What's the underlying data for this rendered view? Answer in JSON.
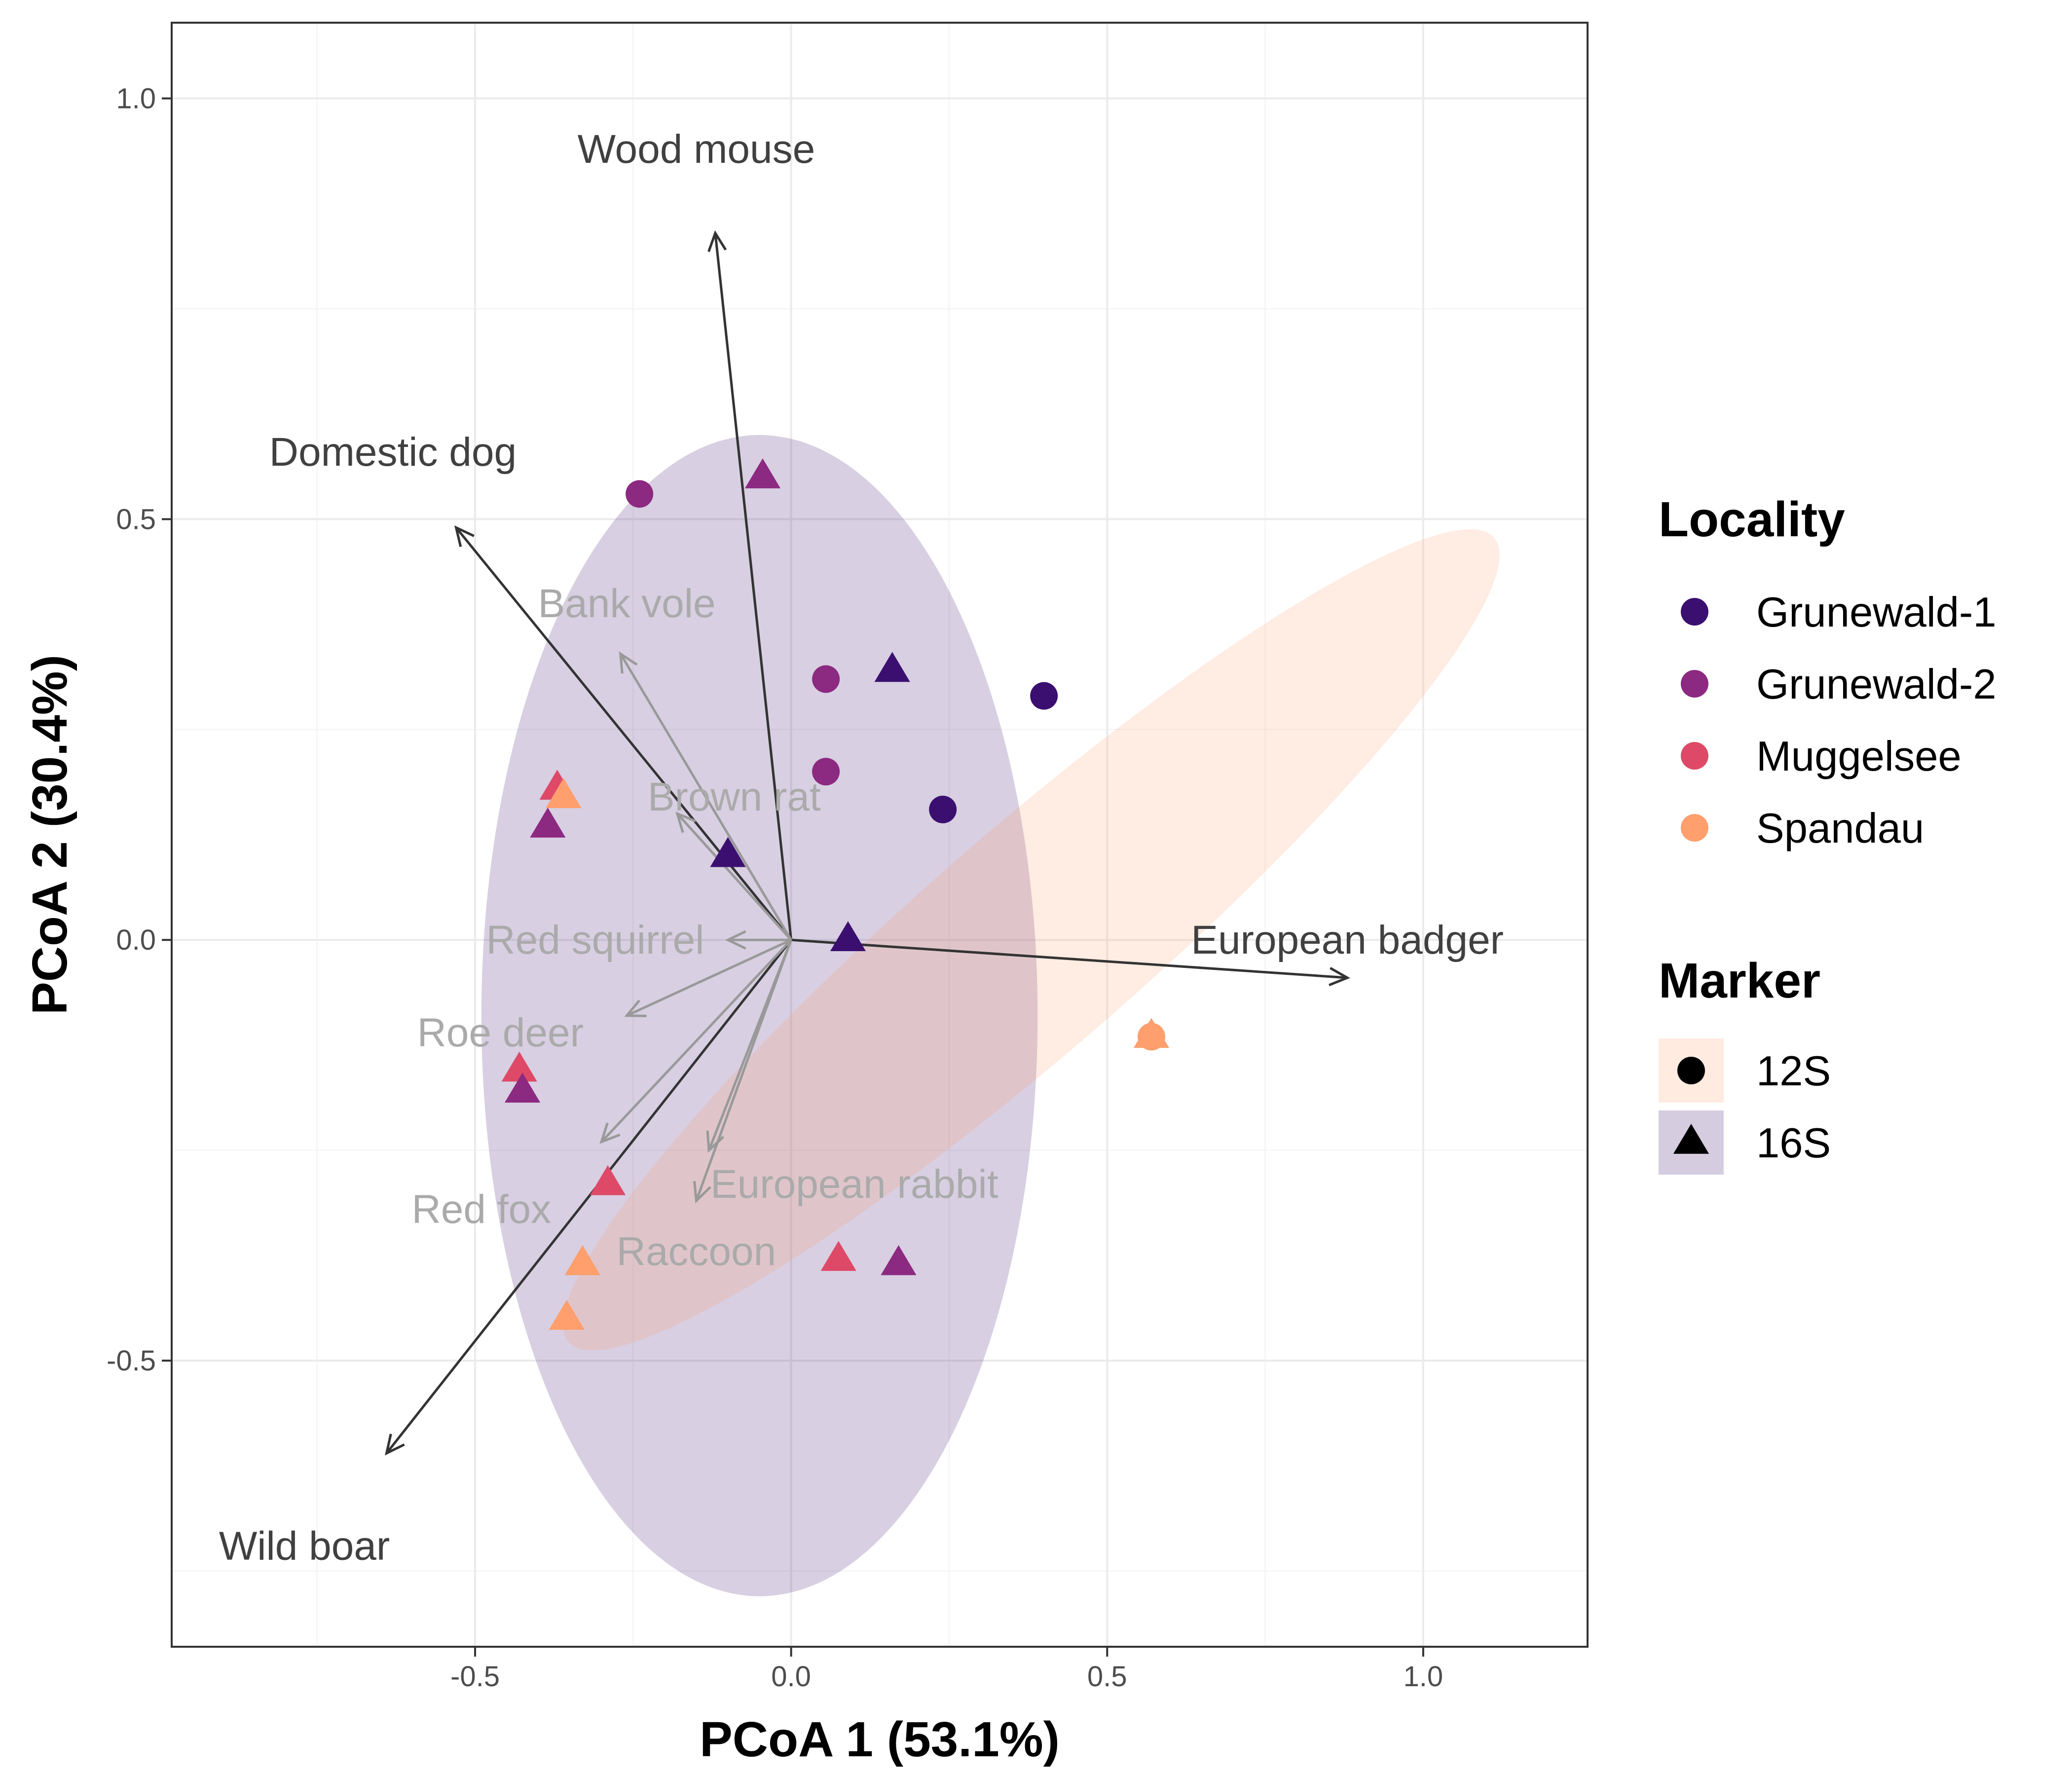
{
  "chart_data": {
    "type": "scatter",
    "xlabel": "PCoA 1 (53.1%)",
    "ylabel": "PCoA 2 (30.4%)",
    "xlim": [
      -0.98,
      1.26
    ],
    "ylim": [
      -0.84,
      1.09
    ],
    "x_ticks": [
      -0.5,
      0.0,
      0.5,
      1.0
    ],
    "y_ticks": [
      -0.5,
      0.0,
      0.5,
      1.0
    ],
    "x_tick_labels": [
      "-0.5",
      "0.0",
      "0.5",
      "1.0"
    ],
    "y_tick_labels": [
      "-0.5",
      "0.0",
      "0.5",
      "1.0"
    ],
    "grid": true,
    "legend_position": "right",
    "legends": [
      {
        "title": "Locality",
        "entries": [
          {
            "label": "Grunewald-1",
            "color": "#3B0F70"
          },
          {
            "label": "Grunewald-2",
            "color": "#8C2981"
          },
          {
            "label": "Muggelsee",
            "color": "#DE4968"
          },
          {
            "label": "Spandau",
            "color": "#FE9F6D"
          }
        ]
      },
      {
        "title": "Marker",
        "entries": [
          {
            "label": "12S",
            "shape": "circle",
            "fill": "#FFEBE0"
          },
          {
            "label": "16S",
            "shape": "triangle",
            "fill": "#D6CCE0"
          }
        ]
      }
    ],
    "ellipses": [
      {
        "marker": "16S",
        "color": "#3B0F70",
        "opacity": 0.2,
        "cx": -0.05,
        "cy": -0.09,
        "rx": 0.44,
        "ry": 0.69,
        "angle": 0
      },
      {
        "marker": "12S",
        "color": "#FE9F6D",
        "opacity": 0.2,
        "cx": 0.38,
        "cy": 0.0,
        "rx": 0.97,
        "ry": 0.13,
        "angle": -41
      }
    ],
    "vectors": [
      {
        "label": "Wood mouse",
        "x": -0.12,
        "y": 0.84,
        "color": "#333333",
        "label_x": -0.15,
        "label_y": 0.94
      },
      {
        "label": "Domestic dog",
        "x": -0.53,
        "y": 0.49,
        "color": "#333333",
        "label_x": -0.63,
        "label_y": 0.58
      },
      {
        "label": "European badger",
        "x": 0.88,
        "y": -0.045,
        "color": "#333333",
        "label_x": 0.88,
        "label_y": 0.0
      },
      {
        "label": "Wild boar",
        "x": -0.64,
        "y": -0.61,
        "color": "#333333",
        "label_x": -0.77,
        "label_y": -0.72
      },
      {
        "label": "Bank vole",
        "x": -0.27,
        "y": 0.34,
        "color": "#999999",
        "label_x": -0.26,
        "label_y": 0.4
      },
      {
        "label": "Brown rat",
        "x": -0.18,
        "y": 0.15,
        "color": "#999999",
        "label_x": -0.09,
        "label_y": 0.17
      },
      {
        "label": "Red squirrel",
        "x": -0.1,
        "y": 0.0,
        "color": "#999999",
        "label_x": -0.31,
        "label_y": 0.0
      },
      {
        "label": "Roe deer",
        "x": -0.26,
        "y": -0.09,
        "color": "#999999",
        "label_x": -0.46,
        "label_y": -0.11
      },
      {
        "label": "Red fox",
        "x": -0.3,
        "y": -0.24,
        "color": "#999999",
        "label_x": -0.49,
        "label_y": -0.32
      },
      {
        "label": "European rabbit",
        "x": -0.13,
        "y": -0.25,
        "color": "#999999",
        "label_x": 0.1,
        "label_y": -0.29
      },
      {
        "label": "Raccoon",
        "x": -0.15,
        "y": -0.31,
        "color": "#999999",
        "label_x": -0.15,
        "label_y": -0.37
      }
    ],
    "points": [
      {
        "x": -0.24,
        "y": 0.53,
        "locality": "Grunewald-2",
        "marker": "12S"
      },
      {
        "x": 0.055,
        "y": 0.31,
        "locality": "Grunewald-2",
        "marker": "12S"
      },
      {
        "x": 0.055,
        "y": 0.2,
        "locality": "Grunewald-2",
        "marker": "12S"
      },
      {
        "x": 0.4,
        "y": 0.29,
        "locality": "Grunewald-1",
        "marker": "12S"
      },
      {
        "x": 0.24,
        "y": 0.155,
        "locality": "Grunewald-1",
        "marker": "12S"
      },
      {
        "x": 0.57,
        "y": -0.115,
        "locality": "Spandau",
        "marker": "12S"
      },
      {
        "x": -0.045,
        "y": 0.55,
        "locality": "Grunewald-2",
        "marker": "16S"
      },
      {
        "x": 0.16,
        "y": 0.32,
        "locality": "Grunewald-1",
        "marker": "16S"
      },
      {
        "x": -0.37,
        "y": 0.18,
        "locality": "Muggelsee",
        "marker": "16S"
      },
      {
        "x": -0.36,
        "y": 0.17,
        "locality": "Spandau",
        "marker": "16S"
      },
      {
        "x": -0.385,
        "y": 0.135,
        "locality": "Grunewald-2",
        "marker": "16S"
      },
      {
        "x": -0.1,
        "y": 0.1,
        "locality": "Grunewald-1",
        "marker": "16S"
      },
      {
        "x": 0.09,
        "y": 0.0,
        "locality": "Grunewald-1",
        "marker": "16S"
      },
      {
        "x": 0.57,
        "y": -0.115,
        "locality": "Spandau",
        "marker": "16S"
      },
      {
        "x": -0.43,
        "y": -0.155,
        "locality": "Muggelsee",
        "marker": "16S"
      },
      {
        "x": -0.425,
        "y": -0.18,
        "locality": "Grunewald-2",
        "marker": "16S"
      },
      {
        "x": -0.29,
        "y": -0.29,
        "locality": "Muggelsee",
        "marker": "16S"
      },
      {
        "x": -0.33,
        "y": -0.385,
        "locality": "Spandau",
        "marker": "16S"
      },
      {
        "x": -0.355,
        "y": -0.45,
        "locality": "Spandau",
        "marker": "16S"
      },
      {
        "x": 0.075,
        "y": -0.38,
        "locality": "Muggelsee",
        "marker": "16S"
      },
      {
        "x": 0.17,
        "y": -0.385,
        "locality": "Grunewald-2",
        "marker": "16S"
      }
    ]
  }
}
